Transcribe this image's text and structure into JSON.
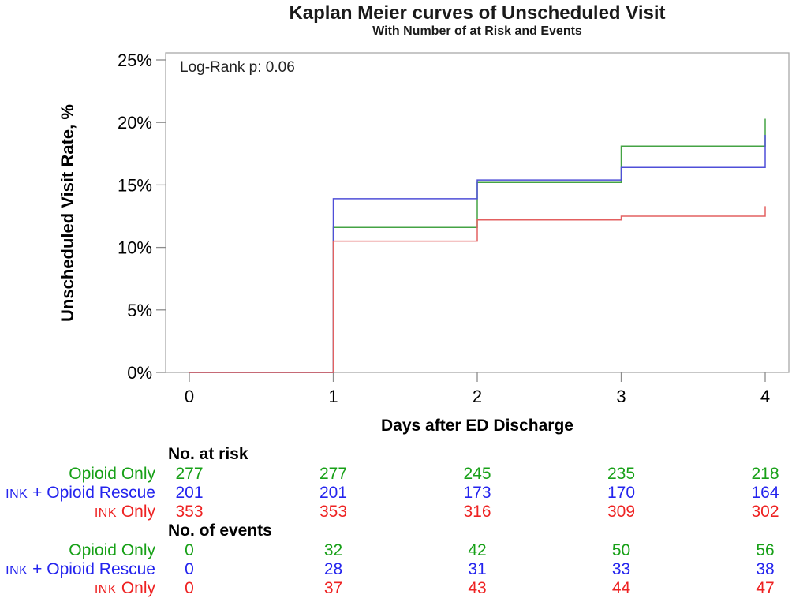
{
  "header": {
    "title": "Kaplan Meier curves of Unscheduled Visit",
    "subtitle": "With Number of at Risk and Events"
  },
  "annotation": {
    "log_rank": "Log-Rank p: 0.06"
  },
  "axes": {
    "y_label": "Unscheduled Visit Rate, %",
    "x_label": "Days after ED Discharge",
    "y_ticks": [
      {
        "value": 0,
        "label": "0%"
      },
      {
        "value": 5,
        "label": "5%"
      },
      {
        "value": 10,
        "label": "10%"
      },
      {
        "value": 15,
        "label": "15%"
      },
      {
        "value": 20,
        "label": "20%"
      },
      {
        "value": 25,
        "label": "25%"
      }
    ],
    "x_ticks": [
      {
        "value": 0,
        "label": "0"
      },
      {
        "value": 1,
        "label": "1"
      },
      {
        "value": 2,
        "label": "2"
      },
      {
        "value": 3,
        "label": "3"
      },
      {
        "value": 4,
        "label": "4"
      }
    ],
    "frame_color": "#a9a9a9",
    "tick_color": "#8c8c8c"
  },
  "chart_data": {
    "type": "line",
    "subtype": "step",
    "title": "Kaplan Meier curves of Unscheduled Visit",
    "subtitle": "With Number of at Risk and Events",
    "xlabel": "Days after ED Discharge",
    "ylabel": "Unscheduled Visit Rate, %",
    "annotation": "Log-Rank p: 0.06",
    "x": [
      0,
      1,
      2,
      3,
      4
    ],
    "xlim": [
      0,
      4
    ],
    "ylim": [
      0,
      25
    ],
    "grid": false,
    "legend": "none (groups identified in risk tables below)",
    "series": [
      {
        "id": "opioid-only",
        "name": "Opioid Only",
        "color": "#17a017",
        "line_color": "#44a344",
        "values_pct": [
          0,
          11.6,
          15.2,
          18.1,
          20.3
        ]
      },
      {
        "id": "ink-opioid-rescue",
        "name": "INK + Opioid Rescue",
        "color": "#2424ee",
        "line_color": "#4f4fd8",
        "values_pct": [
          0,
          13.9,
          15.4,
          16.4,
          19.0
        ]
      },
      {
        "id": "ink-only",
        "name": "INK Only",
        "color": "#ee2222",
        "line_color": "#e36060",
        "values_pct": [
          0,
          10.5,
          12.2,
          12.5,
          13.3
        ]
      }
    ]
  },
  "risk_table": {
    "header": "No. at risk",
    "rows": [
      {
        "id": "opioid-only",
        "label_small": "",
        "label_rest": "Opioid Only",
        "color": "#17a017",
        "values": [
          "277",
          "277",
          "245",
          "235",
          "218"
        ]
      },
      {
        "id": "ink-opioid-rescue",
        "label_small": "INK",
        "label_rest": " + Opioid Rescue",
        "color": "#2424ee",
        "values": [
          "201",
          "201",
          "173",
          "170",
          "164"
        ]
      },
      {
        "id": "ink-only",
        "label_small": "INK",
        "label_rest": " Only",
        "color": "#ee2222",
        "values": [
          "353",
          "353",
          "316",
          "309",
          "302"
        ]
      }
    ]
  },
  "events_table": {
    "header": "No. of events",
    "rows": [
      {
        "id": "opioid-only",
        "label_small": "",
        "label_rest": "Opioid Only",
        "color": "#17a017",
        "values": [
          "0",
          "32",
          "42",
          "50",
          "56"
        ]
      },
      {
        "id": "ink-opioid-rescue",
        "label_small": "INK",
        "label_rest": " + Opioid Rescue",
        "color": "#2424ee",
        "values": [
          "0",
          "28",
          "31",
          "33",
          "38"
        ]
      },
      {
        "id": "ink-only",
        "label_small": "INK",
        "label_rest": " Only",
        "color": "#ee2222",
        "values": [
          "0",
          "37",
          "43",
          "44",
          "47"
        ]
      }
    ]
  }
}
